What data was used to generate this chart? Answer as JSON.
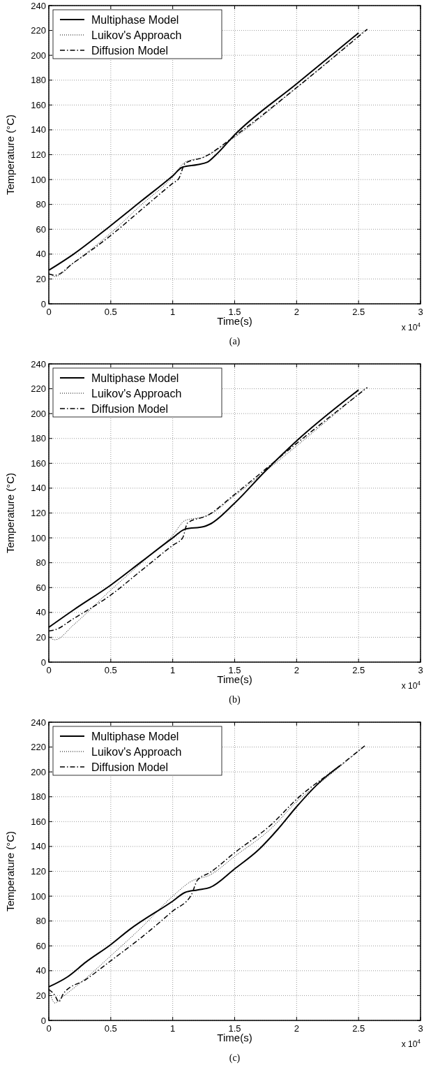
{
  "chart_data": [
    {
      "type": "line",
      "xlabel": "Time(s)",
      "ylabel": "Temperature (°C)",
      "annotations": [
        "x 10$^{4}$",
        "(a)"
      ],
      "xlim": [
        0,
        3
      ],
      "xticks": [
        0,
        0.5,
        1,
        1.5,
        2,
        2.5,
        3
      ],
      "ylim": [
        0,
        240
      ],
      "yticks": [
        0,
        20,
        40,
        60,
        80,
        100,
        120,
        140,
        160,
        180,
        200,
        220,
        240
      ],
      "grid": true,
      "legend": "top left",
      "series": [
        {
          "name": "Multiphase Model",
          "color": "#000000",
          "line_style": "solid",
          "x": [
            0,
            0.2,
            0.5,
            0.75,
            1.0,
            1.08,
            1.2,
            1.28,
            1.35,
            1.5,
            2,
            2.5
          ],
          "values": [
            27,
            40,
            63,
            83,
            103,
            110,
            112,
            114,
            120,
            136,
            177,
            218
          ]
        },
        {
          "name": "Luikov's Approach",
          "color": "#000000",
          "line_style": "dotted",
          "x": [
            0,
            0.05,
            0.2,
            0.5,
            0.75,
            1.0,
            1.1,
            1.25,
            1.5,
            2,
            2.55
          ],
          "values": [
            25,
            22,
            33,
            57,
            80,
            102,
            114,
            118,
            134,
            174,
            220
          ]
        },
        {
          "name": "Diffusion Model",
          "color": "#000000",
          "line_style": "dashdot",
          "x": [
            0,
            0.05,
            0.2,
            0.5,
            0.75,
            1.0,
            1.05,
            1.1,
            1.25,
            1.5,
            2,
            2.57
          ],
          "values": [
            24,
            23,
            33,
            55,
            76,
            97,
            101,
            113,
            118,
            135,
            174,
            221
          ]
        }
      ]
    },
    {
      "type": "line",
      "xlabel": "Time(s)",
      "ylabel": "Temperature (°C)",
      "annotations": [
        "x 10$^{4}$",
        "(b)"
      ],
      "xlim": [
        0,
        3
      ],
      "xticks": [
        0,
        0.5,
        1,
        1.5,
        2,
        2.5,
        3
      ],
      "ylim": [
        0,
        240
      ],
      "yticks": [
        0,
        20,
        40,
        60,
        80,
        100,
        120,
        140,
        160,
        180,
        200,
        220,
        240
      ],
      "grid": true,
      "legend": "top left",
      "series": [
        {
          "name": "Multiphase Model",
          "color": "#000000",
          "line_style": "solid",
          "x": [
            0,
            0.2,
            0.5,
            0.75,
            1.0,
            1.1,
            1.25,
            1.3,
            1.5,
            1.75,
            2,
            2.5
          ],
          "values": [
            28,
            42,
            62,
            81,
            100,
            107,
            109,
            111,
            128,
            154,
            178,
            219
          ]
        },
        {
          "name": "Luikov's Approach",
          "color": "#000000",
          "line_style": "dotted",
          "x": [
            0,
            0.05,
            0.2,
            0.5,
            0.75,
            1.0,
            1.1,
            1.25,
            1.3,
            1.5,
            2,
            2.55
          ],
          "values": [
            20,
            18,
            30,
            58,
            80,
            102,
            114,
            117,
            119,
            134,
            174,
            220
          ]
        },
        {
          "name": "Diffusion Model",
          "color": "#000000",
          "line_style": "dashdot",
          "x": [
            0,
            0.05,
            0.2,
            0.5,
            0.75,
            1.0,
            1.08,
            1.12,
            1.28,
            1.5,
            2,
            2.57
          ],
          "values": [
            25,
            26,
            35,
            54,
            74,
            94,
            100,
            112,
            118,
            135,
            176,
            221
          ]
        }
      ]
    },
    {
      "type": "line",
      "xlabel": "Time(s)",
      "ylabel": "Temperature (°C)",
      "annotations": [
        "x 10$^{4}$",
        "(c)"
      ],
      "xlim": [
        0,
        3
      ],
      "xticks": [
        0,
        0.5,
        1,
        1.5,
        2,
        2.5,
        3
      ],
      "ylim": [
        0,
        240
      ],
      "yticks": [
        0,
        20,
        40,
        60,
        80,
        100,
        120,
        140,
        160,
        180,
        200,
        220,
        240
      ],
      "grid": true,
      "legend": "top left",
      "series": [
        {
          "name": "Multiphase Model",
          "color": "#000000",
          "line_style": "solid",
          "x": [
            0,
            0.15,
            0.3,
            0.5,
            0.65,
            1.0,
            1.1,
            1.2,
            1.3,
            1.5,
            1.7,
            1.85,
            2,
            2.2,
            2.35
          ],
          "values": [
            27,
            35,
            47,
            61,
            73,
            96,
            103,
            105,
            107,
            122,
            138,
            154,
            172,
            193,
            205
          ]
        },
        {
          "name": "Luikov's Approach",
          "color": "#000000",
          "line_style": "dotted",
          "x": [
            0,
            0.05,
            0.1,
            0.3,
            0.5,
            0.75,
            1.0,
            1.15,
            1.3,
            1.5,
            1.8,
            2,
            2.2,
            2.55
          ],
          "values": [
            25,
            14,
            18,
            34,
            52,
            75,
            100,
            112,
            117,
            132,
            155,
            176,
            192,
            221
          ]
        },
        {
          "name": "Diffusion Model",
          "color": "#000000",
          "line_style": "dashdot",
          "x": [
            0,
            0.05,
            0.08,
            0.12,
            0.3,
            0.5,
            0.75,
            1.0,
            1.15,
            1.2,
            1.3,
            1.5,
            1.8,
            2,
            2.35,
            2.55
          ],
          "values": [
            25,
            20,
            15,
            22,
            33,
            48,
            67,
            88,
            101,
            113,
            119,
            135,
            158,
            178,
            205,
            221
          ]
        }
      ]
    }
  ]
}
